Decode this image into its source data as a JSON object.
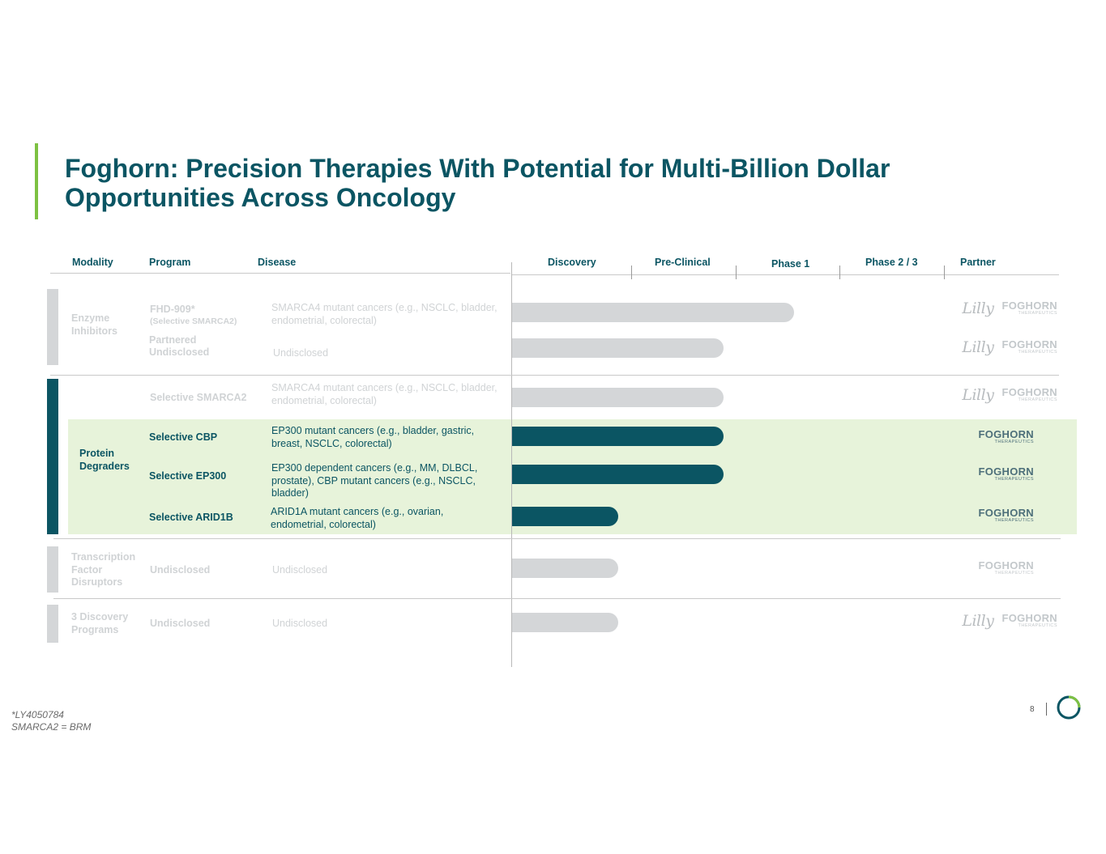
{
  "title": "Foghorn: Precision Therapies With Potential for Multi-Billion Dollar Opportunities Across Oncology",
  "headers": {
    "modality": "Modality",
    "program": "Program",
    "disease": "Disease",
    "discovery": "Discovery",
    "preclinical": "Pre-Clinical",
    "phase1": "Phase 1",
    "phase23": "Phase 2 / 3",
    "partner": "Partner"
  },
  "modalities": {
    "enzyme": "Enzyme Inhibitors",
    "degraders": "Protein Degraders",
    "tfd": "Transcription Factor Disruptors",
    "discovery": "3 Discovery Programs"
  },
  "rows": [
    {
      "program": "FHD-909*",
      "program_sub": "(Selective SMARCA2)",
      "disease": "SMARCA4 mutant cancers (e.g., NSCLC, bladder, endometrial, colorectal)",
      "stage_progress": 0.8
    },
    {
      "program": "Partnered Undisclosed",
      "disease": "Undisclosed",
      "stage_progress": 0.6
    },
    {
      "program": "Selective SMARCA2",
      "disease": "SMARCA4 mutant cancers (e.g., NSCLC, bladder, endometrial, colorectal)",
      "stage_progress": 0.6
    },
    {
      "program": "Selective CBP",
      "disease": "EP300 mutant cancers (e.g., bladder, gastric, breast, NSCLC, colorectal)",
      "stage_progress": 0.6
    },
    {
      "program": "Selective EP300",
      "disease": "EP300 dependent cancers (e.g., MM, DLBCL, prostate), CBP mutant cancers (e.g., NSCLC, bladder)",
      "stage_progress": 0.6
    },
    {
      "program": "Selective ARID1B",
      "disease": "ARID1A mutant cancers (e.g., ovarian, endometrial, colorectal)",
      "stage_progress": 0.3
    },
    {
      "program": "Undisclosed",
      "disease": "Undisclosed",
      "stage_progress": 0.3
    },
    {
      "program": "Undisclosed",
      "disease": "Undisclosed",
      "stage_progress": 0.3
    }
  ],
  "partners": {
    "lilly": "Lilly",
    "foghorn": "FOGHORN",
    "foghorn_sub": "THERAPEUTICS"
  },
  "footnotes": {
    "line1": "*LY4050784",
    "line2": "SMARCA2 = BRM"
  },
  "page_number": "8",
  "colors": {
    "teal": "#0b5563",
    "green_accent": "#7dc142",
    "highlight_band": "#e7f3da",
    "muted_gray": "#d4d6d8"
  }
}
